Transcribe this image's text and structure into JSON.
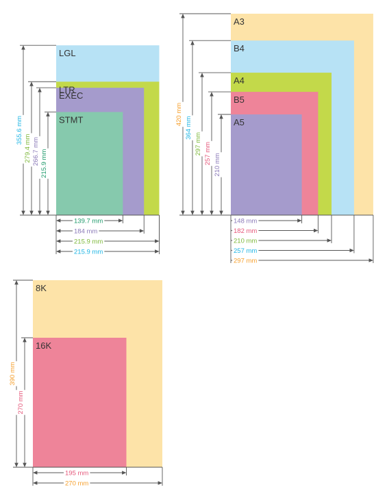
{
  "colors": {
    "orange": "#f6a02e",
    "blue": "#1fb5e4",
    "green": "#7db83a",
    "purple": "#8a79b8",
    "pink": "#e5577a",
    "teal": "#1f9a6b",
    "fill_orange": "#fde3a8",
    "fill_blue": "#b7e2f5",
    "fill_green": "#c3d94a",
    "fill_purple": "#a59bcc",
    "fill_pink": "#ee8499",
    "fill_teal": "#86c9ad"
  },
  "us_group": {
    "papers": [
      {
        "label": "LGL",
        "width_mm": 215.9,
        "height_mm": 355.6,
        "width_text": "215.9 mm",
        "height_text": "355.6 mm",
        "fill": "#b7e2f5",
        "text_color": "#1fb5e4"
      },
      {
        "label": "LTR",
        "width_mm": 215.9,
        "height_mm": 279.4,
        "width_text": "215.9 mm",
        "height_text": "279.4 mm",
        "fill": "#c3d94a",
        "text_color": "#7db83a"
      },
      {
        "label": "EXEC",
        "width_mm": 184,
        "height_mm": 266.7,
        "width_text": "184 mm",
        "height_text": "266.7 mm",
        "fill": "#a59bcc",
        "text_color": "#8a79b8"
      },
      {
        "label": "STMT",
        "width_mm": 139.7,
        "height_mm": 215.9,
        "width_text": "139.7 mm",
        "height_text": "215.9 mm",
        "fill": "#86c9ad",
        "text_color": "#1f9a6b"
      }
    ]
  },
  "iso_group": {
    "papers": [
      {
        "label": "A3",
        "width_mm": 297,
        "height_mm": 420,
        "width_text": "297 mm",
        "height_text": "420 mm",
        "fill": "#fde3a8",
        "text_color": "#f6a02e"
      },
      {
        "label": "B4",
        "width_mm": 257,
        "height_mm": 364,
        "width_text": "257 mm",
        "height_text": "364 mm",
        "fill": "#b7e2f5",
        "text_color": "#1fb5e4"
      },
      {
        "label": "A4",
        "width_mm": 210,
        "height_mm": 297,
        "width_text": "210 mm",
        "height_text": "297 mm",
        "fill": "#c3d94a",
        "text_color": "#7db83a"
      },
      {
        "label": "B5",
        "width_mm": 182,
        "height_mm": 257,
        "width_text": "182 mm",
        "height_text": "257 mm",
        "fill": "#ee8499",
        "text_color": "#e5577a"
      },
      {
        "label": "A5",
        "width_mm": 148,
        "height_mm": 210,
        "width_text": "148 mm",
        "height_text": "210 mm",
        "fill": "#a59bcc",
        "text_color": "#8a79b8"
      }
    ]
  },
  "k_group": {
    "papers": [
      {
        "label": "8K",
        "width_mm": 270,
        "height_mm": 390,
        "width_text": "270 mm",
        "height_text": "390 mm",
        "fill": "#fde3a8",
        "text_color": "#f6a02e"
      },
      {
        "label": "16K",
        "width_mm": 195,
        "height_mm": 270,
        "width_text": "195 mm",
        "height_text": "270 mm",
        "fill": "#ee8499",
        "text_color": "#e5577a"
      }
    ]
  }
}
